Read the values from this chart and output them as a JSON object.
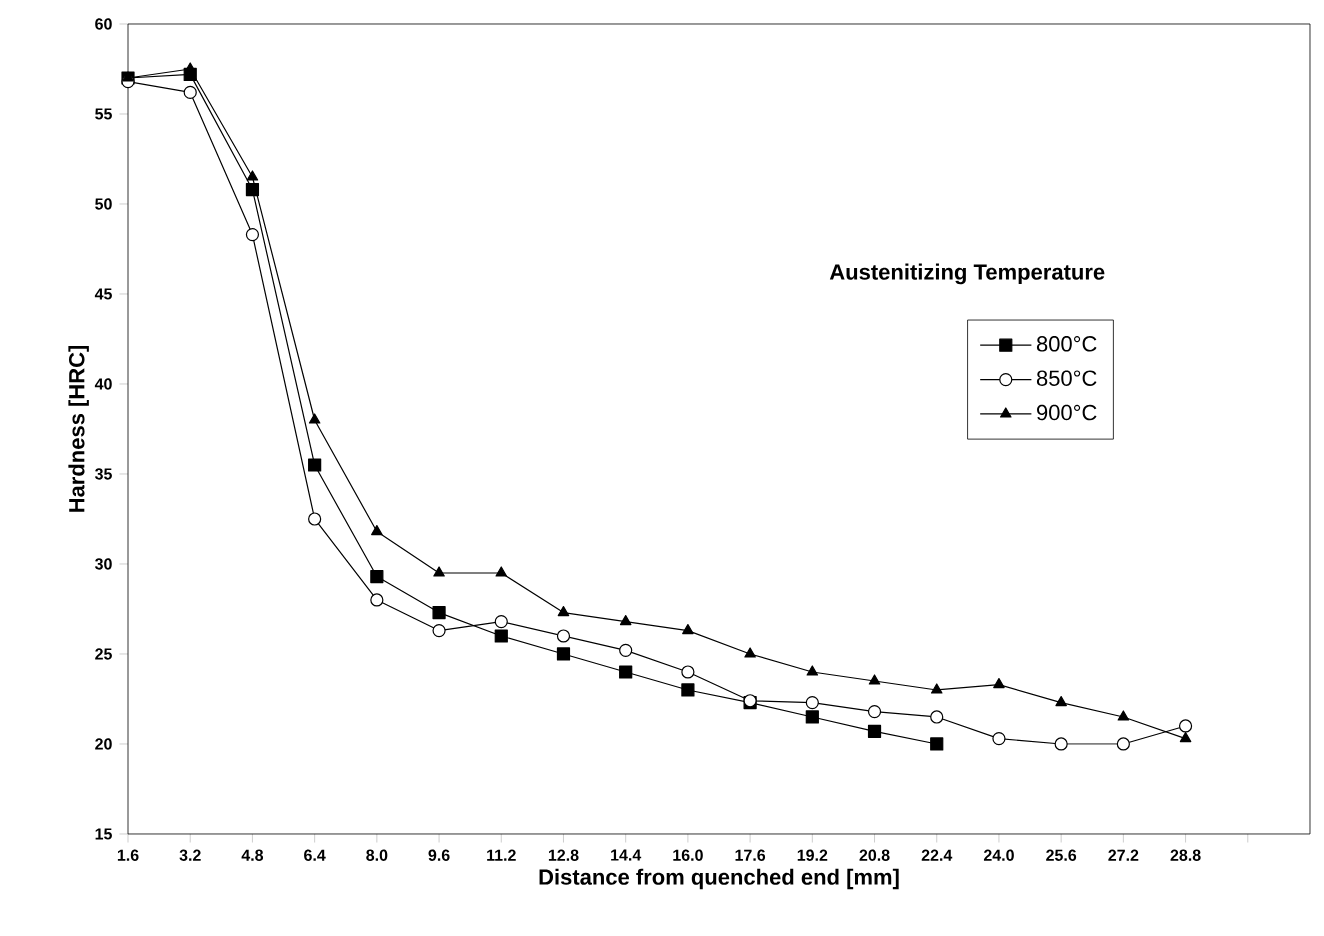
{
  "chart_data": {
    "type": "line",
    "xlabel": "Distance from quenched end [mm]",
    "ylabel": "Hardness [HRC]",
    "legend_title": "Austenitizing Temperature",
    "legend": "right",
    "grid": false,
    "line_style": "solid",
    "xlim": [
      1.6,
      32
    ],
    "ylim": [
      15,
      60
    ],
    "xticks": [
      1.6,
      3.2,
      4.8,
      6.4,
      {
        "value": 8,
        "label": "8.0"
      },
      9.6,
      11.2,
      12.8,
      14.4,
      {
        "value": 16,
        "label": "16.0"
      },
      17.6,
      19.2,
      20.8,
      22.4,
      {
        "value": 24,
        "label": "24.0"
      },
      25.6,
      27.2,
      28.8,
      {
        "value": 30.4,
        "label": null
      }
    ],
    "yticks": [
      15,
      20,
      25,
      30,
      35,
      40,
      45,
      50,
      55,
      60
    ],
    "series": [
      {
        "name": "800°C",
        "color": "#000000",
        "marker": "square",
        "x": [
          1.6,
          3.2,
          4.8,
          6.4,
          8.0,
          9.6,
          11.2,
          12.8,
          14.4,
          16.0,
          17.6,
          19.2,
          20.8,
          22.4
        ],
        "values": [
          57,
          57.2,
          50.8,
          35.5,
          29.3,
          27.3,
          26.0,
          25.0,
          24.0,
          23.0,
          22.3,
          21.5,
          20.7,
          20.0
        ]
      },
      {
        "name": "850°C",
        "color": "#000000",
        "marker": "circle",
        "x": [
          1.6,
          3.2,
          4.8,
          6.4,
          8.0,
          9.6,
          11.2,
          12.8,
          14.4,
          16.0,
          17.6,
          19.2,
          20.8,
          22.4,
          24.0,
          25.6,
          27.2,
          28.8
        ],
        "values": [
          56.8,
          56.2,
          48.3,
          32.5,
          28.0,
          26.3,
          26.8,
          26.0,
          25.2,
          24.0,
          22.4,
          22.3,
          21.8,
          21.5,
          20.3,
          20.0,
          20.0,
          21.0
        ]
      },
      {
        "name": "900°C",
        "color": "#000000",
        "marker": "triangle",
        "x": [
          1.6,
          3.2,
          4.8,
          6.4,
          8.0,
          9.6,
          11.2,
          12.8,
          14.4,
          16.0,
          17.6,
          19.2,
          20.8,
          22.4,
          24.0,
          25.6,
          27.2,
          28.8
        ],
        "values": [
          57,
          57.5,
          51.5,
          38.0,
          31.8,
          29.5,
          29.5,
          27.3,
          26.8,
          26.3,
          25.0,
          24.0,
          23.5,
          23.0,
          23.3,
          22.3,
          21.5,
          20.3
        ]
      }
    ]
  }
}
